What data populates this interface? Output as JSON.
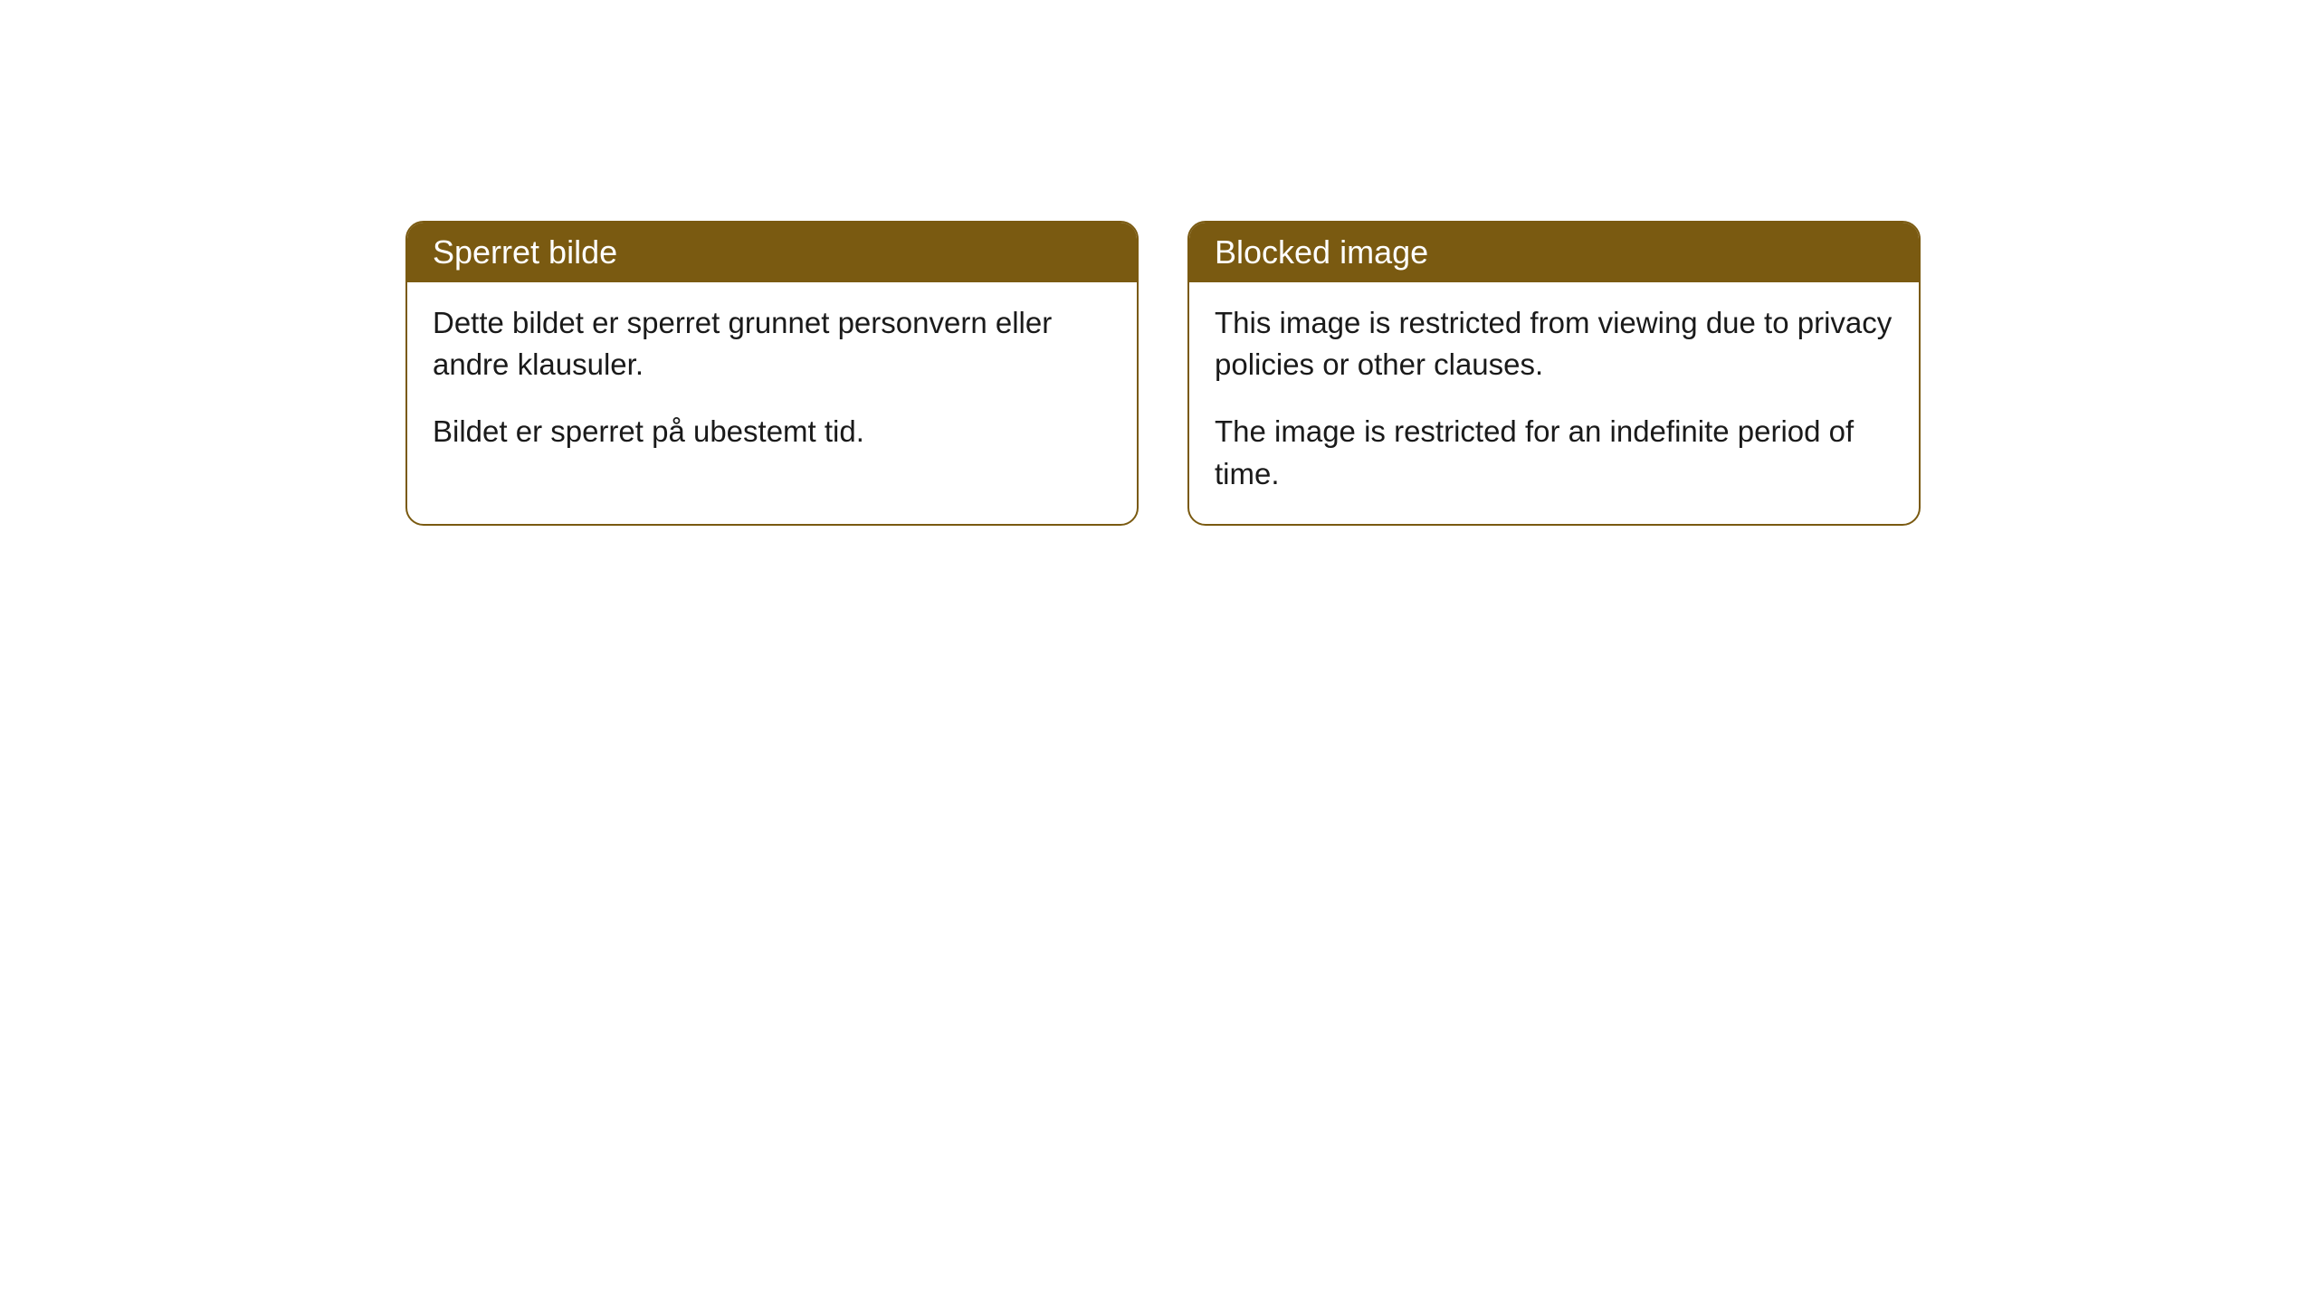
{
  "cards": [
    {
      "title": "Sperret bilde",
      "paragraph1": "Dette bildet er sperret grunnet personvern eller andre klausuler.",
      "paragraph2": "Bildet er sperret på ubestemt tid."
    },
    {
      "title": "Blocked image",
      "paragraph1": "This image is restricted from viewing due to privacy policies or other clauses.",
      "paragraph2": "The image is restricted for an indefinite period of time."
    }
  ],
  "styling": {
    "header_background_color": "#7a5a11",
    "header_text_color": "#ffffff",
    "body_text_color": "#1a1a1a",
    "border_color": "#7a5a11",
    "card_background_color": "#ffffff",
    "page_background_color": "#ffffff",
    "border_radius": 20,
    "header_fontsize": 36,
    "body_fontsize": 33
  }
}
